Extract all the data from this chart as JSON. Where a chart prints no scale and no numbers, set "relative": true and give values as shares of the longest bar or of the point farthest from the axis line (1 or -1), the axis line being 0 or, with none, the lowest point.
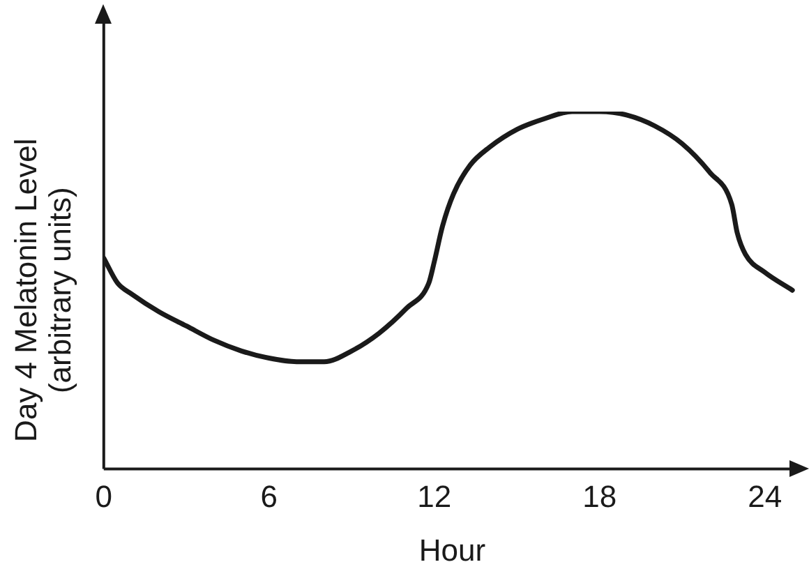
{
  "chart_data": {
    "type": "line",
    "xlabel": "Hour",
    "ylabel": "Day 4 Melatonin Level\n(arbitrary units)",
    "relative": true,
    "tick_labels": "x",
    "xlim": [
      0,
      25.3
    ],
    "xticks": [
      0,
      6,
      12,
      18,
      24
    ],
    "grid": false,
    "legend": false,
    "marker": "none",
    "line_style": "solid",
    "series": [
      {
        "color": "#1a1a1a",
        "x": [
          0,
          0.5,
          1,
          2,
          3,
          4,
          5,
          6,
          7,
          8,
          9,
          10,
          11,
          11.8,
          12,
          12.3,
          12.7,
          13.3,
          14,
          15,
          16,
          17,
          18,
          19,
          20,
          21,
          22,
          22.8,
          23,
          23.3,
          24,
          25
        ],
        "values": [
          0.59,
          0.52,
          0.49,
          0.44,
          0.4,
          0.36,
          0.33,
          0.31,
          0.3,
          0.3,
          0.33,
          0.38,
          0.45,
          0.52,
          0.58,
          0.68,
          0.77,
          0.85,
          0.9,
          0.95,
          0.98,
          1.0,
          1.0,
          0.99,
          0.96,
          0.91,
          0.83,
          0.74,
          0.66,
          0.6,
          0.55,
          0.5
        ]
      }
    ]
  }
}
